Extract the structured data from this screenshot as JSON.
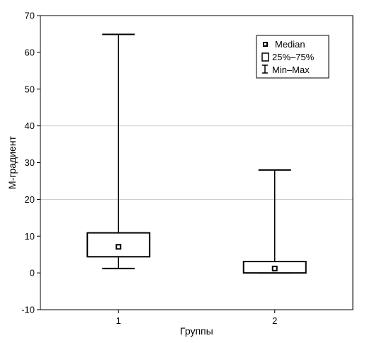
{
  "chart_data": {
    "type": "boxplot",
    "xlabel": "Группы",
    "ylabel": "M-градиент",
    "ylim": [
      -10,
      70
    ],
    "yticks": [
      -10,
      0,
      10,
      20,
      30,
      40,
      50,
      60,
      70
    ],
    "grid_y_lines": [
      20,
      40
    ],
    "categories": [
      "1",
      "2"
    ],
    "boxes": [
      {
        "category": "1",
        "min": 1.2,
        "q1": 4.4,
        "median": 7.1,
        "q3": 10.9,
        "max": 64.9
      },
      {
        "category": "2",
        "min": 0.0,
        "q1": 0.0,
        "median": 1.2,
        "q3": 3.1,
        "max": 28.0
      }
    ],
    "legend": {
      "position": "top-right",
      "entries": [
        {
          "symbol": "median",
          "label": "Median"
        },
        {
          "symbol": "box",
          "label": "25%–75%"
        },
        {
          "symbol": "whisker",
          "label": "Min–Max"
        }
      ]
    },
    "colors": {
      "stroke": "#000000",
      "grid": "#c8c8c8",
      "background": "#ffffff"
    }
  }
}
